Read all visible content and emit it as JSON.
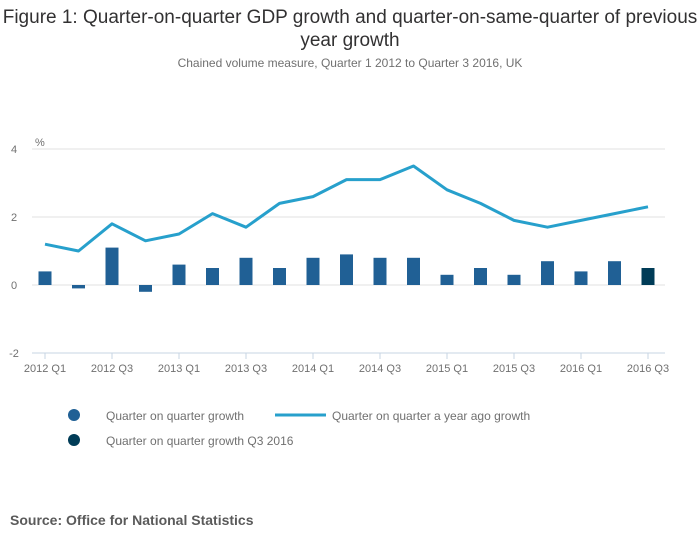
{
  "chart_data": {
    "type": "bar",
    "title": "Figure 1: Quarter-on-quarter GDP growth and quarter-on-same-quarter of previous year growth",
    "subtitle": "Chained volume measure, Quarter 1 2012 to Quarter 3 2016, UK",
    "ylabel": "%",
    "xlabel": "",
    "ylim": [
      -2,
      4
    ],
    "yticks": [
      -2,
      0,
      2,
      4
    ],
    "grid": true,
    "categories": [
      "2012 Q1",
      "2012 Q2",
      "2012 Q3",
      "2012 Q4",
      "2013 Q1",
      "2013 Q2",
      "2013 Q3",
      "2013 Q4",
      "2014 Q1",
      "2014 Q2",
      "2014 Q3",
      "2014 Q4",
      "2015 Q1",
      "2015 Q2",
      "2015 Q3",
      "2015 Q4",
      "2016 Q1",
      "2016 Q2",
      "2016 Q3"
    ],
    "xtick_labels": [
      "2012 Q1",
      "2012 Q3",
      "2013 Q1",
      "2013 Q3",
      "2014 Q1",
      "2014 Q3",
      "2015 Q1",
      "2015 Q3",
      "2016 Q1",
      "2016 Q3"
    ],
    "series": [
      {
        "name": "Quarter on quarter growth",
        "type": "bar",
        "color": "#206095",
        "values": [
          0.4,
          -0.1,
          1.1,
          -0.2,
          0.6,
          0.5,
          0.8,
          0.5,
          0.8,
          0.9,
          0.8,
          0.8,
          0.3,
          0.5,
          0.3,
          0.7,
          0.4,
          0.7,
          null
        ]
      },
      {
        "name": "Quarter on quarter growth Q3 2016",
        "type": "bar",
        "color": "#003c57",
        "values": [
          null,
          null,
          null,
          null,
          null,
          null,
          null,
          null,
          null,
          null,
          null,
          null,
          null,
          null,
          null,
          null,
          null,
          null,
          0.5
        ]
      },
      {
        "name": "Quarter on quarter a year ago growth",
        "type": "line",
        "color": "#27a0cc",
        "values": [
          1.2,
          1.0,
          1.8,
          1.3,
          1.5,
          2.1,
          1.7,
          2.4,
          2.6,
          3.1,
          3.1,
          3.5,
          2.8,
          2.4,
          1.9,
          1.7,
          1.9,
          2.1,
          2.3
        ]
      }
    ],
    "legend_position": "bottom-left",
    "source": "Source: Office for National Statistics"
  }
}
